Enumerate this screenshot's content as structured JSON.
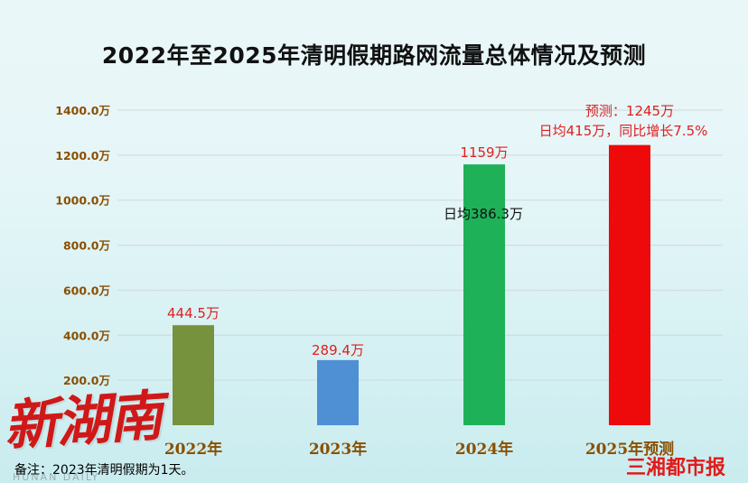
{
  "title": "2022年至2025年清明假期路网流量总体情况及预测",
  "note": "备注：2023年清明假期为1天。",
  "watermarks": {
    "left_logo": "新湖南",
    "left_logo_sub": "HUNAN DAILY",
    "right_logo": "三湘都市报"
  },
  "colors": {
    "axis_label": "#8a4f00",
    "value_label": "#e01e1e",
    "grid": "#cfd8dc"
  },
  "chart_data": {
    "type": "bar",
    "title": "2022年至2025年清明假期路网流量总体情况及预测",
    "xlabel": "",
    "ylabel": "",
    "ylim": [
      0,
      1400
    ],
    "yticks": [
      0,
      200,
      400,
      600,
      800,
      1000,
      1200,
      1400
    ],
    "ytick_labels": [
      "0",
      "200.0万",
      "400.0万",
      "600.0万",
      "800.0万",
      "1000.0万",
      "1200.0万",
      "1400.0万"
    ],
    "grid": true,
    "categories": [
      "2022年",
      "2023年",
      "2024年",
      "2025年预测"
    ],
    "values": [
      444.5,
      289.4,
      1159,
      1245
    ],
    "bar_colors": [
      "#76923c",
      "#4f8fd4",
      "#1fb158",
      "#ee0a0a"
    ],
    "data_labels": [
      "444.5万",
      "289.4万",
      "1159万",
      "预测：1245万"
    ],
    "annotations": [
      "日均386.3万",
      "日均415万，同比增长7.5%"
    ]
  }
}
